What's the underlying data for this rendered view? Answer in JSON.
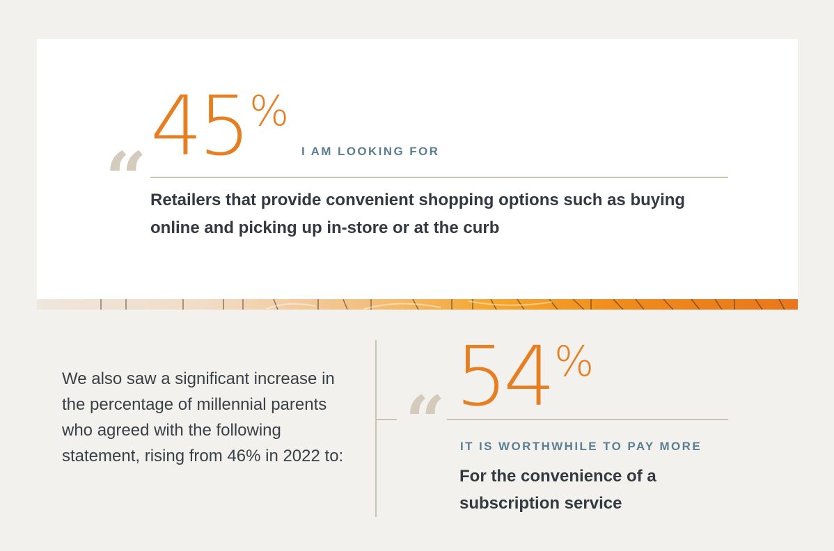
{
  "top_stat": {
    "quote_mark": "“",
    "number": "45",
    "percent_sign": "%",
    "kicker": "I AM LOOKING FOR",
    "statement": "Retailers that provide convenient shopping options such as buying online and picking up in-store or at the curb"
  },
  "intro": {
    "text": "We also saw a significant increase in the percentage of millennial parents who agreed with the following statement, rising from 46% in 2022 to:"
  },
  "bottom_stat": {
    "quote_mark": "“",
    "number": "54",
    "percent_sign": "%",
    "kicker": "IT IS WORTHWHILE TO PAY MORE",
    "statement": "For the convenience of a subscription service"
  },
  "colors": {
    "accent_orange": "#e67e22",
    "kicker_blue": "#5b7f92",
    "quote_gray": "#d4cbbd",
    "background": "#f3f1ed"
  }
}
